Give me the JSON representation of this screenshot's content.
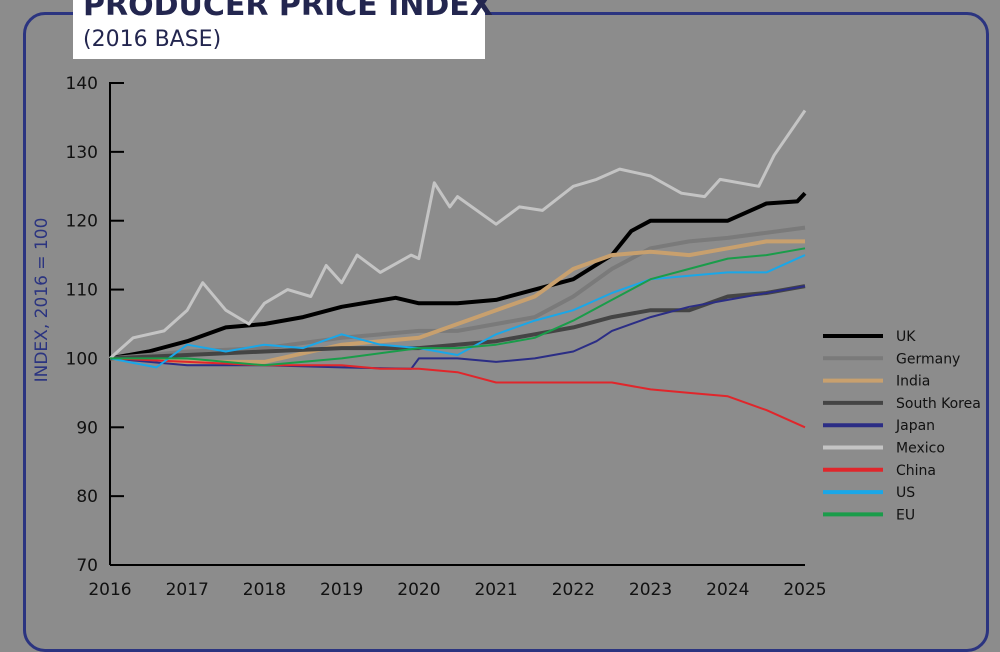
{
  "title": "PRODUCER PRICE INDEX",
  "subtitle": "(2016 BASE)",
  "chart_data": {
    "type": "line",
    "title": "PRODUCER PRICE INDEX",
    "subtitle": "(2016 BASE)",
    "xlabel": "",
    "ylabel": "INDEX, 2016 = 100",
    "xlim": [
      2016,
      2025
    ],
    "ylim": [
      70,
      140
    ],
    "xticks": [
      "2016",
      "2017",
      "2018",
      "2019",
      "2020",
      "2021",
      "2022",
      "2023",
      "2024",
      "2025"
    ],
    "yticks": [
      "70",
      "80",
      "90",
      "100",
      "110",
      "120",
      "130",
      "140"
    ],
    "grid": false,
    "legend": "right",
    "series": [
      {
        "name": "UK",
        "color": "#000000",
        "width": 4,
        "points": [
          [
            2016,
            100
          ],
          [
            2016.5,
            101
          ],
          [
            2017,
            102.5
          ],
          [
            2017.5,
            104.5
          ],
          [
            2018,
            105
          ],
          [
            2018.5,
            106
          ],
          [
            2019,
            107.5
          ],
          [
            2019.7,
            108.8
          ],
          [
            2020,
            108
          ],
          [
            2020.5,
            108
          ],
          [
            2021,
            108.5
          ],
          [
            2021.5,
            110
          ],
          [
            2022,
            111.5
          ],
          [
            2022.5,
            115
          ],
          [
            2022.75,
            118.5
          ],
          [
            2023,
            120
          ],
          [
            2023.5,
            120
          ],
          [
            2024,
            120
          ],
          [
            2024.5,
            122.5
          ],
          [
            2024.9,
            122.8
          ],
          [
            2025,
            124
          ]
        ]
      },
      {
        "name": "Germany",
        "color": "#7a7a7a",
        "width": 4,
        "points": [
          [
            2016,
            100
          ],
          [
            2017,
            101
          ],
          [
            2018,
            101.5
          ],
          [
            2019,
            103
          ],
          [
            2020,
            104
          ],
          [
            2020.5,
            104
          ],
          [
            2021,
            105
          ],
          [
            2021.5,
            106
          ],
          [
            2022,
            109
          ],
          [
            2022.5,
            113
          ],
          [
            2023,
            116
          ],
          [
            2023.5,
            117
          ],
          [
            2024,
            117.5
          ],
          [
            2025,
            119
          ]
        ]
      },
      {
        "name": "India",
        "color": "#c8a06e",
        "width": 4,
        "points": [
          [
            2016,
            100
          ],
          [
            2017,
            99.5
          ],
          [
            2018,
            99.5
          ],
          [
            2019,
            102
          ],
          [
            2020,
            103
          ],
          [
            2020.5,
            105
          ],
          [
            2021,
            107
          ],
          [
            2021.5,
            109
          ],
          [
            2022,
            113
          ],
          [
            2022.5,
            115
          ],
          [
            2023,
            115.5
          ],
          [
            2023.5,
            115
          ],
          [
            2024,
            116
          ],
          [
            2024.5,
            117
          ],
          [
            2025,
            117
          ]
        ]
      },
      {
        "name": "South Korea",
        "color": "#444444",
        "width": 4,
        "points": [
          [
            2016,
            100
          ],
          [
            2017,
            100.5
          ],
          [
            2018,
            101
          ],
          [
            2019,
            101.5
          ],
          [
            2020,
            101.5
          ],
          [
            2021,
            102.5
          ],
          [
            2021.5,
            103.5
          ],
          [
            2022,
            104.5
          ],
          [
            2022.5,
            106
          ],
          [
            2023,
            107
          ],
          [
            2023.5,
            107
          ],
          [
            2024,
            109
          ],
          [
            2024.5,
            109.5
          ],
          [
            2025,
            110.5
          ]
        ]
      },
      {
        "name": "Japan",
        "color": "#2b2d85",
        "width": 2,
        "points": [
          [
            2016,
            100
          ],
          [
            2017,
            99
          ],
          [
            2018,
            99
          ],
          [
            2019,
            98.7
          ],
          [
            2019.9,
            98.5
          ],
          [
            2020,
            100
          ],
          [
            2020.5,
            100
          ],
          [
            2021,
            99.5
          ],
          [
            2021.5,
            100
          ],
          [
            2022,
            101
          ],
          [
            2022.3,
            102.5
          ],
          [
            2022.5,
            104
          ],
          [
            2023,
            106
          ],
          [
            2023.5,
            107.5
          ],
          [
            2024,
            108.5
          ],
          [
            2025,
            110.5
          ]
        ]
      },
      {
        "name": "Mexico",
        "color": "#c4c4c4",
        "width": 3,
        "points": [
          [
            2016,
            100
          ],
          [
            2016.3,
            103
          ],
          [
            2016.7,
            104
          ],
          [
            2017,
            107
          ],
          [
            2017.2,
            111
          ],
          [
            2017.5,
            107
          ],
          [
            2017.8,
            105
          ],
          [
            2018,
            108
          ],
          [
            2018.3,
            110
          ],
          [
            2018.6,
            109
          ],
          [
            2018.8,
            113.5
          ],
          [
            2019,
            111
          ],
          [
            2019.2,
            115
          ],
          [
            2019.5,
            112.5
          ],
          [
            2019.9,
            115
          ],
          [
            2020,
            114.5
          ],
          [
            2020.2,
            125.5
          ],
          [
            2020.4,
            122
          ],
          [
            2020.5,
            123.5
          ],
          [
            2021,
            119.5
          ],
          [
            2021.3,
            122
          ],
          [
            2021.6,
            121.5
          ],
          [
            2022,
            125
          ],
          [
            2022.3,
            126
          ],
          [
            2022.6,
            127.5
          ],
          [
            2023,
            126.5
          ],
          [
            2023.4,
            124
          ],
          [
            2023.7,
            123.5
          ],
          [
            2023.9,
            126
          ],
          [
            2024.4,
            125
          ],
          [
            2024.6,
            129.5
          ],
          [
            2025,
            136
          ]
        ]
      },
      {
        "name": "China",
        "color": "#e0262b",
        "width": 2,
        "points": [
          [
            2016,
            100
          ],
          [
            2017,
            99.5
          ],
          [
            2018,
            99
          ],
          [
            2019,
            99
          ],
          [
            2019.5,
            98.5
          ],
          [
            2020,
            98.5
          ],
          [
            2020.5,
            98
          ],
          [
            2021,
            96.5
          ],
          [
            2021.5,
            96.5
          ],
          [
            2022,
            96.5
          ],
          [
            2022.5,
            96.5
          ],
          [
            2023,
            95.5
          ],
          [
            2023.5,
            95
          ],
          [
            2024,
            94.5
          ],
          [
            2024.5,
            92.5
          ],
          [
            2025,
            90
          ]
        ]
      },
      {
        "name": "US",
        "color": "#1aa7e8",
        "width": 2,
        "points": [
          [
            2016,
            100
          ],
          [
            2016.6,
            98.7
          ],
          [
            2017,
            102
          ],
          [
            2017.5,
            101
          ],
          [
            2018,
            102
          ],
          [
            2018.5,
            101.5
          ],
          [
            2019,
            103.5
          ],
          [
            2019.5,
            102
          ],
          [
            2020,
            101.5
          ],
          [
            2020.5,
            100.5
          ],
          [
            2021,
            103.5
          ],
          [
            2021.5,
            105.5
          ],
          [
            2022,
            107
          ],
          [
            2022.5,
            109.5
          ],
          [
            2023,
            111.5
          ],
          [
            2023.5,
            112
          ],
          [
            2024,
            112.5
          ],
          [
            2024.5,
            112.5
          ],
          [
            2025,
            115
          ]
        ]
      },
      {
        "name": "EU",
        "color": "#1a9c4a",
        "width": 2,
        "points": [
          [
            2016,
            100
          ],
          [
            2017,
            100
          ],
          [
            2018,
            99
          ],
          [
            2019,
            100
          ],
          [
            2020,
            101.5
          ],
          [
            2020.5,
            101.5
          ],
          [
            2021,
            102
          ],
          [
            2021.5,
            103
          ],
          [
            2022,
            105.5
          ],
          [
            2022.5,
            108.5
          ],
          [
            2023,
            111.5
          ],
          [
            2023.5,
            113
          ],
          [
            2024,
            114.5
          ],
          [
            2024.5,
            115
          ],
          [
            2025,
            116
          ]
        ]
      }
    ]
  }
}
